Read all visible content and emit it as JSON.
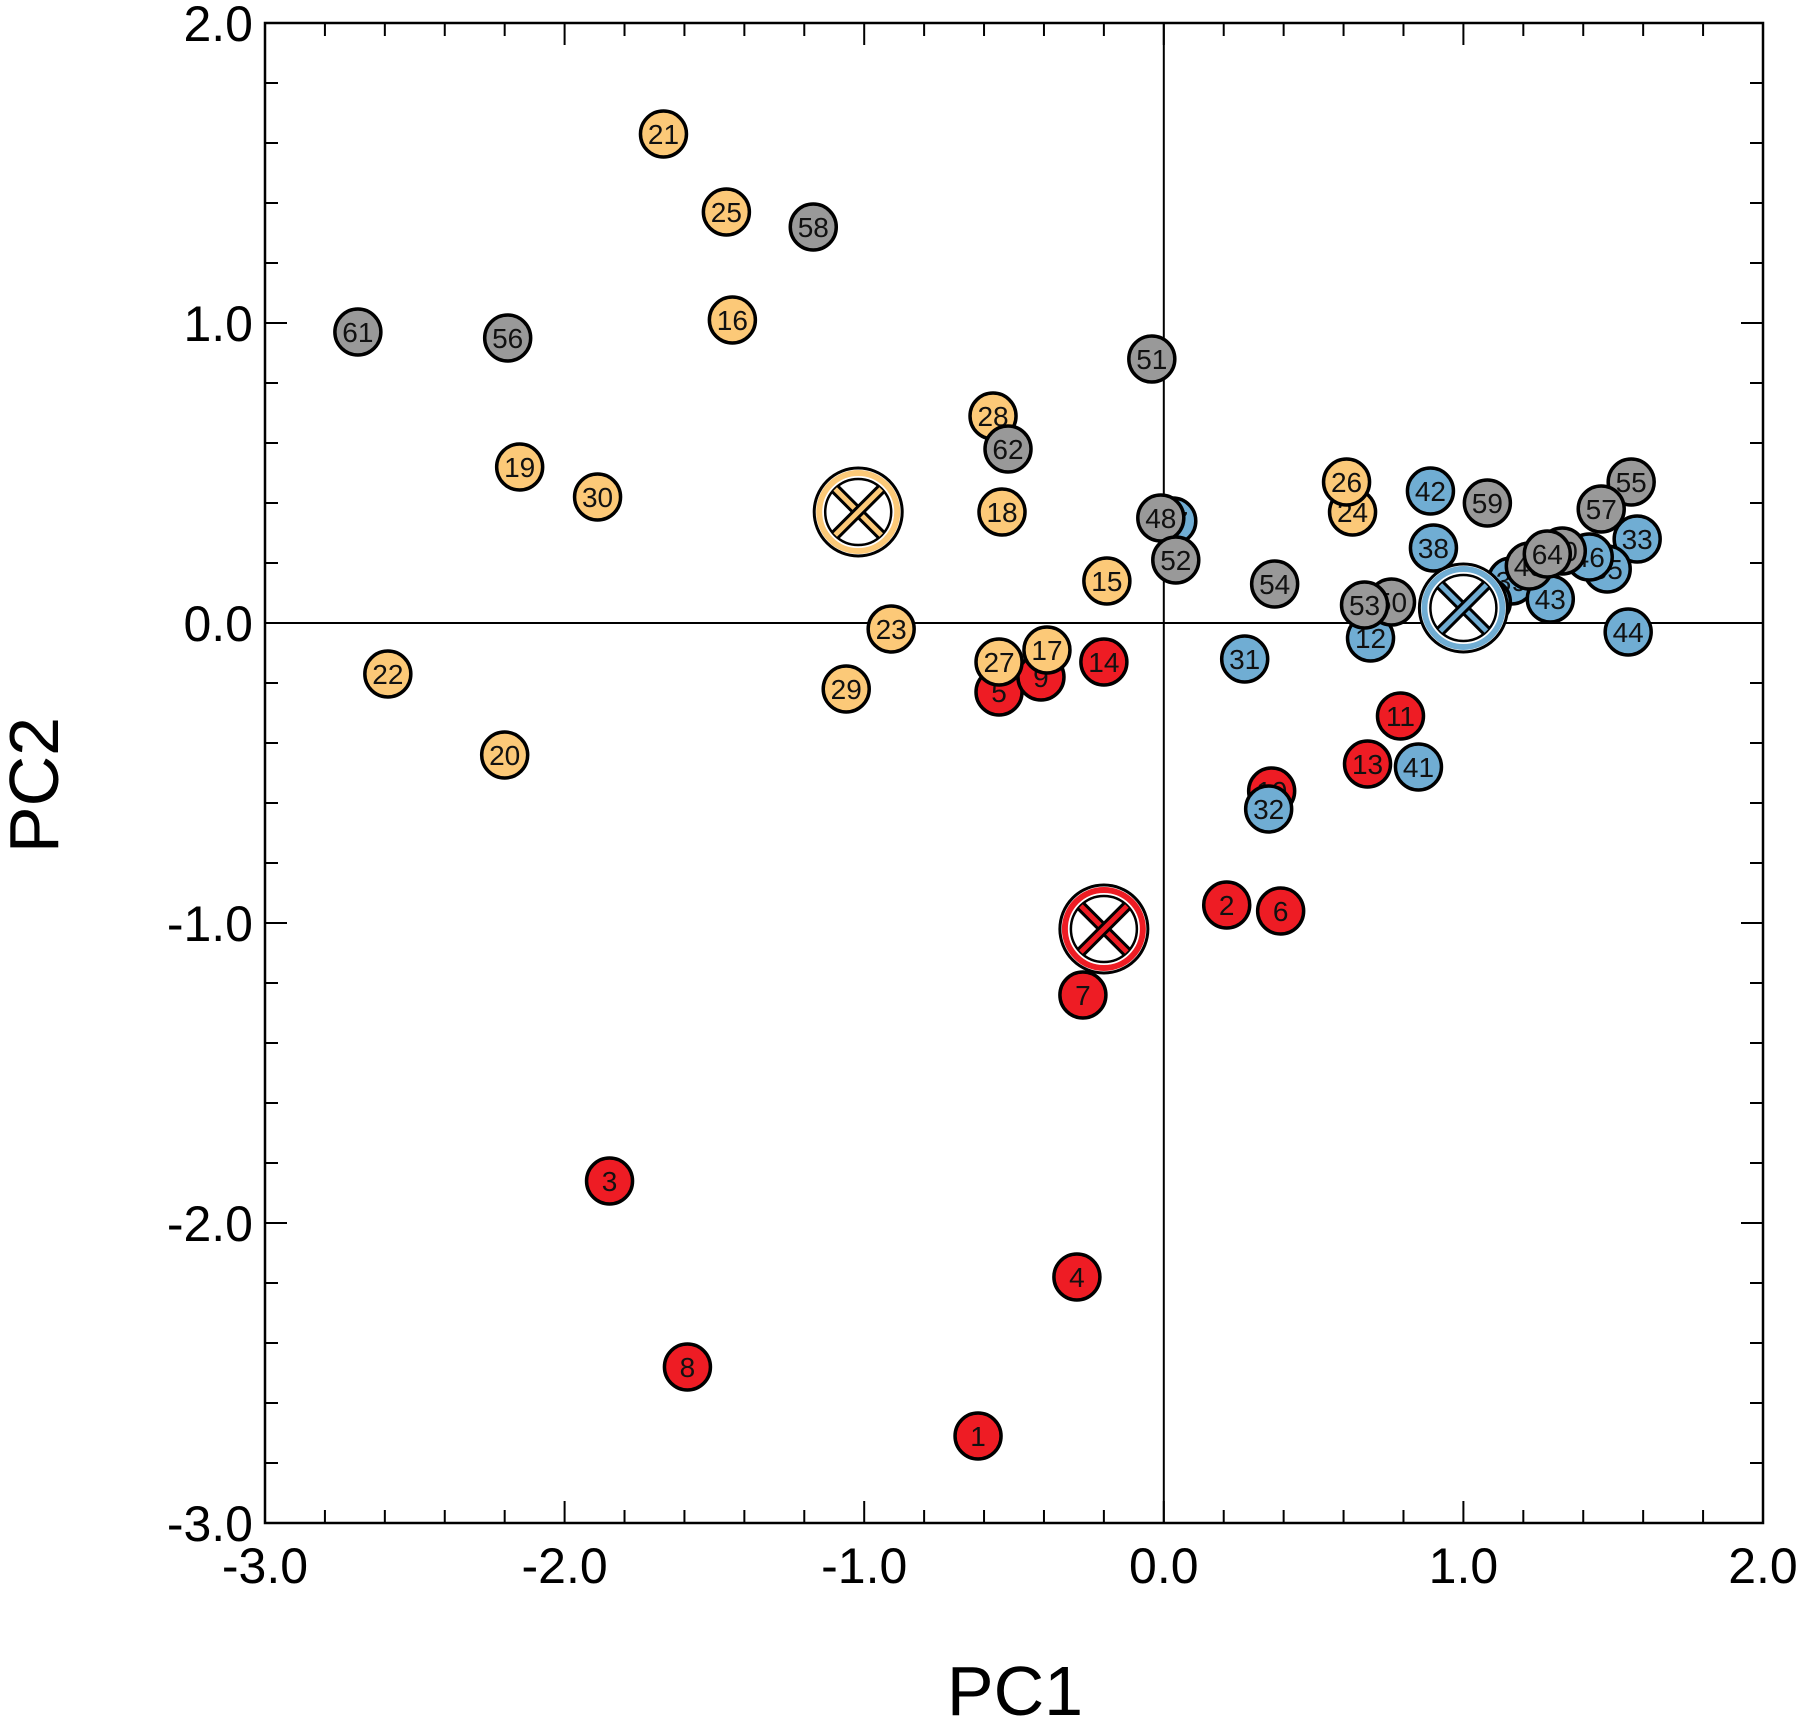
{
  "chart_data": {
    "type": "scatter",
    "xlabel": "PC1",
    "ylabel": "PC2",
    "xlim": [
      -3.0,
      2.0
    ],
    "ylim": [
      -3.0,
      2.0
    ],
    "xticks": [
      -3.0,
      -2.0,
      -1.0,
      0.0,
      1.0,
      2.0
    ],
    "yticks": [
      -3.0,
      -2.0,
      -1.0,
      0.0,
      1.0,
      2.0
    ],
    "xtick_labels": [
      "-3.0",
      "-2.0",
      "-1.0",
      "0.0",
      "1.0",
      "2.0"
    ],
    "ytick_labels": [
      "-3.0",
      "-2.0",
      "-1.0",
      "0.0",
      "1.0",
      "2.0"
    ],
    "minor_tick_step": 0.2,
    "zero_lines": true,
    "grid": false,
    "legend": "none",
    "groups": [
      {
        "color": "#ee1c24",
        "centroid": [
          -0.2,
          -1.02
        ]
      },
      {
        "color": "#fcc978",
        "centroid": [
          -1.02,
          0.37
        ]
      },
      {
        "color": "#70add3",
        "centroid": [
          1.0,
          0.05
        ]
      },
      {
        "color": "#999999",
        "centroid": null
      }
    ],
    "points": [
      {
        "label": "1",
        "x": -0.62,
        "y": -2.71,
        "group": 0
      },
      {
        "label": "2",
        "x": 0.21,
        "y": -0.94,
        "group": 0
      },
      {
        "label": "3",
        "x": -1.85,
        "y": -1.86,
        "group": 0
      },
      {
        "label": "4",
        "x": -0.29,
        "y": -2.18,
        "group": 0
      },
      {
        "label": "5",
        "x": -0.55,
        "y": -0.23,
        "group": 0
      },
      {
        "label": "6",
        "x": 0.39,
        "y": -0.96,
        "group": 0
      },
      {
        "label": "7",
        "x": -0.27,
        "y": -1.24,
        "group": 0
      },
      {
        "label": "8",
        "x": -1.59,
        "y": -2.48,
        "group": 0
      },
      {
        "label": "9",
        "x": -0.41,
        "y": -0.18,
        "group": 0
      },
      {
        "label": "10",
        "x": 0.36,
        "y": -0.56,
        "group": 0
      },
      {
        "label": "11",
        "x": 0.79,
        "y": -0.31,
        "group": 0
      },
      {
        "label": "13",
        "x": 0.68,
        "y": -0.47,
        "group": 0
      },
      {
        "label": "14",
        "x": -0.2,
        "y": -0.13,
        "group": 0
      },
      {
        "label": "15",
        "x": -0.19,
        "y": 0.14,
        "group": 1
      },
      {
        "label": "16",
        "x": -1.44,
        "y": 1.01,
        "group": 1
      },
      {
        "label": "17",
        "x": -0.39,
        "y": -0.09,
        "group": 1
      },
      {
        "label": "18",
        "x": -0.54,
        "y": 0.37,
        "group": 1
      },
      {
        "label": "19",
        "x": -2.15,
        "y": 0.52,
        "group": 1
      },
      {
        "label": "20",
        "x": -2.2,
        "y": -0.44,
        "group": 1
      },
      {
        "label": "21",
        "x": -1.67,
        "y": 1.63,
        "group": 1
      },
      {
        "label": "22",
        "x": -2.59,
        "y": -0.17,
        "group": 1
      },
      {
        "label": "23",
        "x": -0.91,
        "y": -0.02,
        "group": 1
      },
      {
        "label": "24",
        "x": 0.63,
        "y": 0.37,
        "group": 1
      },
      {
        "label": "25",
        "x": -1.46,
        "y": 1.37,
        "group": 1
      },
      {
        "label": "26",
        "x": 0.61,
        "y": 0.47,
        "group": 1
      },
      {
        "label": "27",
        "x": -0.55,
        "y": -0.13,
        "group": 1
      },
      {
        "label": "28",
        "x": -0.57,
        "y": 0.69,
        "group": 1
      },
      {
        "label": "29",
        "x": -1.06,
        "y": -0.22,
        "group": 1
      },
      {
        "label": "30",
        "x": -1.89,
        "y": 0.42,
        "group": 1
      },
      {
        "label": "31",
        "x": 0.27,
        "y": -0.12,
        "group": 2
      },
      {
        "label": "32",
        "x": 0.35,
        "y": -0.62,
        "group": 2
      },
      {
        "label": "33",
        "x": 1.58,
        "y": 0.28,
        "group": 2
      },
      {
        "label": "35",
        "x": 1.48,
        "y": 0.18,
        "group": 2
      },
      {
        "label": "38",
        "x": 0.9,
        "y": 0.25,
        "group": 2
      },
      {
        "label": "39",
        "x": 1.16,
        "y": 0.14,
        "group": 2
      },
      {
        "label": "41",
        "x": 0.85,
        "y": -0.48,
        "group": 2
      },
      {
        "label": "42",
        "x": 0.89,
        "y": 0.44,
        "group": 2
      },
      {
        "label": "43",
        "x": 1.29,
        "y": 0.08,
        "group": 2
      },
      {
        "label": "44",
        "x": 1.55,
        "y": -0.03,
        "group": 2
      },
      {
        "label": "45",
        "x": 1.08,
        "y": 0.07,
        "group": 2
      },
      {
        "label": "46",
        "x": 1.42,
        "y": 0.22,
        "group": 2
      },
      {
        "label": "47",
        "x": 0.03,
        "y": 0.34,
        "group": 2
      },
      {
        "label": "12",
        "x": 0.69,
        "y": -0.05,
        "group": 2
      },
      {
        "label": "48",
        "x": -0.01,
        "y": 0.35,
        "group": 3
      },
      {
        "label": "49",
        "x": 1.22,
        "y": 0.19,
        "group": 3
      },
      {
        "label": "50",
        "x": 0.76,
        "y": 0.07,
        "group": 3
      },
      {
        "label": "51",
        "x": -0.04,
        "y": 0.88,
        "group": 3
      },
      {
        "label": "52",
        "x": 0.04,
        "y": 0.21,
        "group": 3
      },
      {
        "label": "53",
        "x": 0.67,
        "y": 0.06,
        "group": 3
      },
      {
        "label": "54",
        "x": 0.37,
        "y": 0.13,
        "group": 3
      },
      {
        "label": "55",
        "x": 1.56,
        "y": 0.47,
        "group": 3
      },
      {
        "label": "56",
        "x": -2.19,
        "y": 0.95,
        "group": 3
      },
      {
        "label": "57",
        "x": 1.46,
        "y": 0.38,
        "group": 3
      },
      {
        "label": "58",
        "x": -1.17,
        "y": 1.32,
        "group": 3
      },
      {
        "label": "59",
        "x": 1.08,
        "y": 0.4,
        "group": 3
      },
      {
        "label": "60",
        "x": 1.33,
        "y": 0.24,
        "group": 3
      },
      {
        "label": "61",
        "x": -2.69,
        "y": 0.97,
        "group": 3
      },
      {
        "label": "62",
        "x": -0.52,
        "y": 0.58,
        "group": 3
      },
      {
        "label": "64",
        "x": 1.28,
        "y": 0.23,
        "group": 3
      }
    ]
  }
}
